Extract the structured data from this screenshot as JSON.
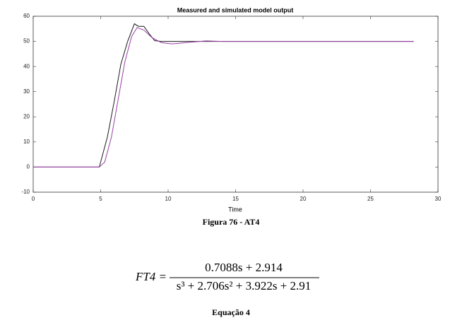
{
  "chart_data": {
    "type": "line",
    "title": "Measured and simulated model output",
    "x_label": "Time",
    "xlim": [
      0,
      30
    ],
    "ylim": [
      -10,
      60
    ],
    "xticks": [
      0,
      5,
      10,
      15,
      20,
      25,
      30
    ],
    "yticks": [
      -10,
      0,
      10,
      20,
      30,
      40,
      50,
      60
    ],
    "grid": false,
    "series": [
      {
        "color": "#1a1a1a",
        "x": [
          0,
          4.9,
          5.5,
          6.0,
          6.5,
          7.0,
          7.5,
          7.8,
          8.2,
          8.6,
          9.0,
          9.5,
          28.2
        ],
        "values": [
          0,
          0,
          12,
          26,
          41,
          50,
          57,
          56,
          56,
          53,
          50.3,
          50,
          50
        ]
      },
      {
        "color": "#9b3fa8",
        "x": [
          0,
          4.9,
          5.3,
          5.8,
          6.3,
          6.8,
          7.3,
          7.7,
          8.2,
          8.8,
          9.5,
          10.3,
          11.5,
          12.8,
          14,
          28.2
        ],
        "values": [
          0,
          0,
          2,
          12,
          27,
          42,
          52,
          55.5,
          54.5,
          51.5,
          49.5,
          49,
          49.6,
          50.2,
          50,
          50
        ]
      }
    ]
  },
  "figure_caption": "Figura 76 - AT4",
  "equation": {
    "lhs": "FT4 =",
    "numerator": "0.7088s + 2.914",
    "denominator": "s³ + 2.706s² + 3.922s + 2.91"
  },
  "equation_caption": "Equação 4"
}
